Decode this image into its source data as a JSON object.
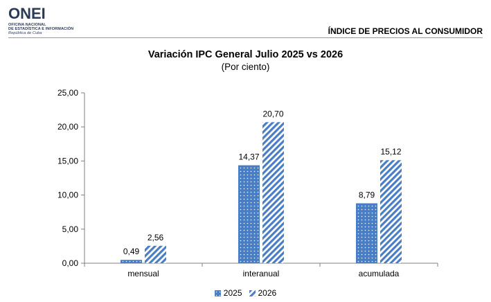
{
  "header": {
    "logo_text": "ONEI",
    "logo_line_1": "OFICINA NACIONAL",
    "logo_line_2": "DE ESTADÍSTICA E INFORMACIÓN",
    "logo_line_3": "República de Cuba",
    "section_title": "ÍNDICE DE PRECIOS AL CONSUMIDOR"
  },
  "colors": {
    "bar_fill": "#4a7ec4",
    "bar_stripe_bg": "#ffffff",
    "axis": "#7f7f7f",
    "brand": "#2b3a57"
  },
  "chart_data": {
    "type": "bar",
    "title": "Variación IPC General Julio 2025 vs 2026",
    "subtitle": "(Por ciento)",
    "categories": [
      "mensual",
      "interanual",
      "acumulada"
    ],
    "series": [
      {
        "name": "2025",
        "values": [
          0.49,
          14.37,
          8.79
        ],
        "labels": [
          "0,49",
          "14,37",
          "8,79"
        ],
        "pattern": "dots"
      },
      {
        "name": "2026",
        "values": [
          2.56,
          20.7,
          15.12
        ],
        "labels": [
          "2,56",
          "20,70",
          "15,12"
        ],
        "pattern": "stripes"
      }
    ],
    "ylim": [
      0,
      25
    ],
    "yticks": [
      "0,00",
      "5,00",
      "10,00",
      "15,00",
      "20,00",
      "25,00"
    ],
    "ytick_values": [
      0,
      5,
      10,
      15,
      20,
      25
    ],
    "grid": false,
    "legend_position": "bottom"
  }
}
